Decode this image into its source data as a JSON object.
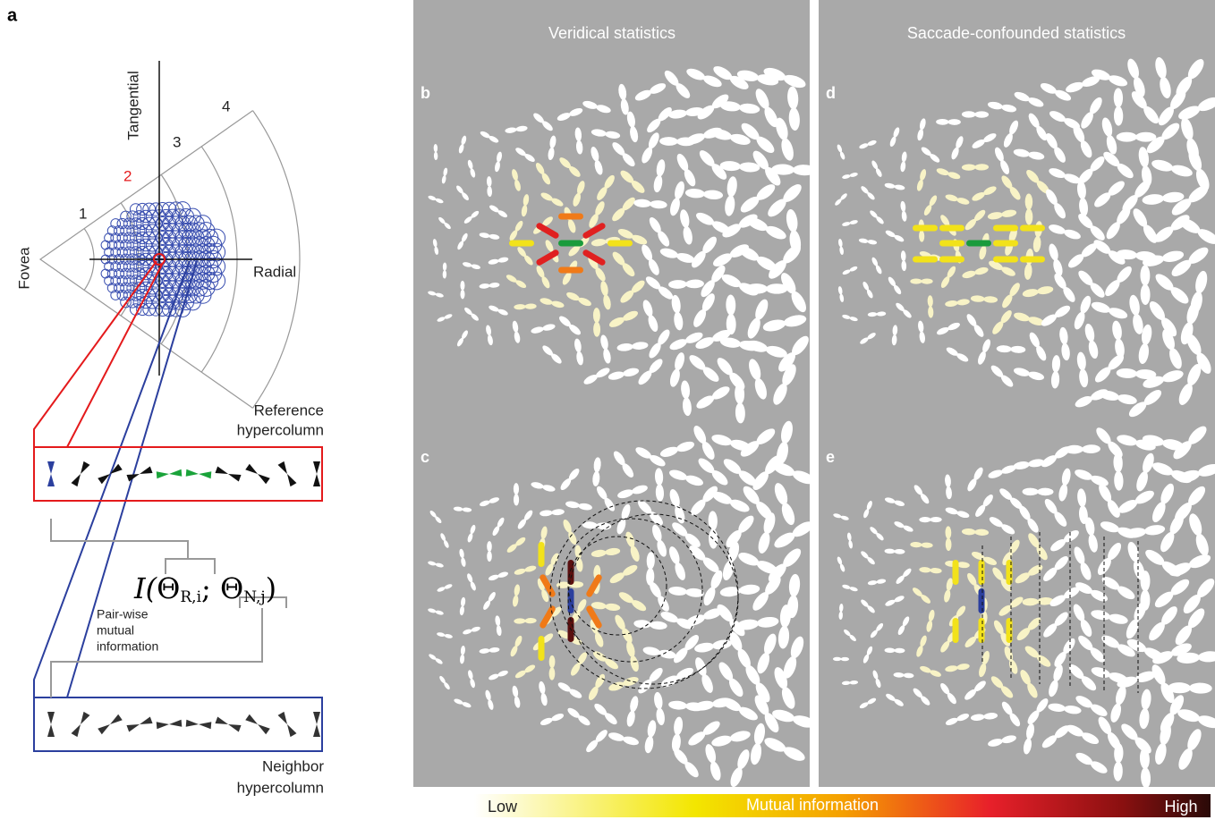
{
  "panel_a": {
    "label": "a",
    "axis_tangential": "Tangential",
    "axis_radial": "Radial",
    "fovea": "Fovea",
    "rings": [
      "1",
      "2",
      "3",
      "4"
    ],
    "reference": [
      "Reference",
      "hypercolumn"
    ],
    "neighbor": [
      "Neighbor",
      "hypercolumn"
    ],
    "formula": [
      "I(",
      "Θ",
      "R,i",
      "; ",
      "Θ",
      "N,j",
      ")"
    ],
    "pairwise": [
      "Pair-wise",
      "mutual",
      "information"
    ]
  },
  "panels": [
    {
      "label": "b"
    },
    {
      "label": "c"
    },
    {
      "label": "d"
    },
    {
      "label": "e"
    }
  ],
  "columns": [
    "Veridical statistics",
    "Saccade-confounded statistics"
  ],
  "colorbar": {
    "low": "Low",
    "title": "Mutual information",
    "high": "High"
  }
}
